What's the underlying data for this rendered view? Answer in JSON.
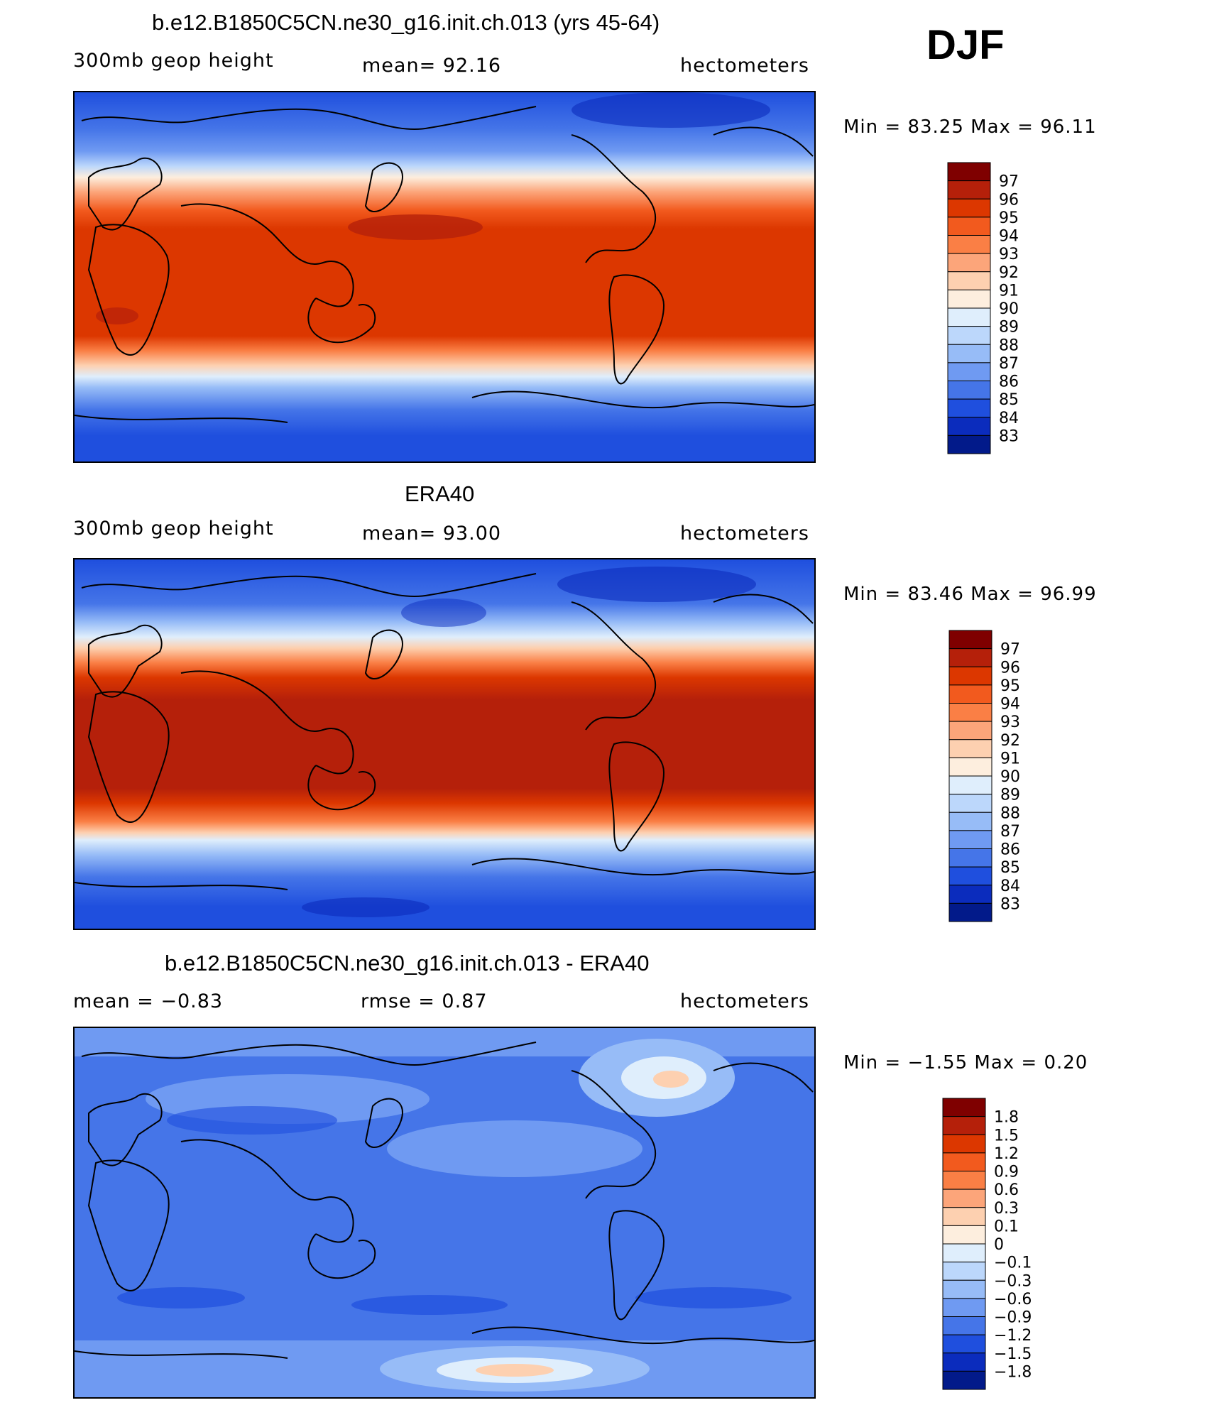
{
  "season": "DJF",
  "panels": [
    {
      "id": "model",
      "title": "b.e12.B1850C5CN.ne30_g16.init.ch.013 (yrs 45-64)",
      "left_label": "300mb  geop  height",
      "center_label": "mean=   92.16",
      "right_label": "hectometers",
      "min_max": "Min  =    83.25  Max  =    96.11",
      "colorbar_labels": [
        "97",
        "96",
        "95",
        "94",
        "93",
        "92",
        "91",
        "90",
        "89",
        "88",
        "87",
        "86",
        "85",
        "84",
        "83"
      ]
    },
    {
      "id": "obs",
      "title": "ERA40",
      "left_label": "300mb  geop  height",
      "center_label": "mean=   93.00",
      "right_label": "hectometers",
      "min_max": "Min  =    83.46  Max  =    96.99",
      "colorbar_labels": [
        "97",
        "96",
        "95",
        "94",
        "93",
        "92",
        "91",
        "90",
        "89",
        "88",
        "87",
        "86",
        "85",
        "84",
        "83"
      ]
    },
    {
      "id": "diff",
      "title": "b.e12.B1850C5CN.ne30_g16.init.ch.013 - ERA40",
      "left_label": "mean  =    −0.83",
      "center_label": "rmse  =     0.87",
      "right_label": "hectometers",
      "min_max": "Min  =    −1.55  Max  =     0.20",
      "colorbar_labels": [
        "1.8",
        "1.5",
        "1.2",
        "0.9",
        "0.6",
        "0.3",
        "0.1",
        "0",
        "−0.1",
        "−0.3",
        "−0.6",
        "−0.9",
        "−1.2",
        "−1.5",
        "−1.8"
      ]
    }
  ],
  "colors": {
    "abs_scale": [
      "#7f0000",
      "#b5200a",
      "#dc3700",
      "#f25a1e",
      "#fa7f45",
      "#fca57a",
      "#fdd0b0",
      "#fdeede",
      "#dfeefc",
      "#bcd7fb",
      "#97bcf7",
      "#6f9af2",
      "#4575e8",
      "#1f4fde",
      "#0b2cbd",
      "#021a8a"
    ],
    "diff_scale": [
      "#7f0000",
      "#b5200a",
      "#dc3700",
      "#f25a1e",
      "#fa7f45",
      "#fca57a",
      "#fdd0b0",
      "#fdeede",
      "#dfeefc",
      "#bcd7fb",
      "#97bcf7",
      "#6f9af2",
      "#4575e8",
      "#1f4fde",
      "#0b2cbd",
      "#021a8a"
    ]
  }
}
